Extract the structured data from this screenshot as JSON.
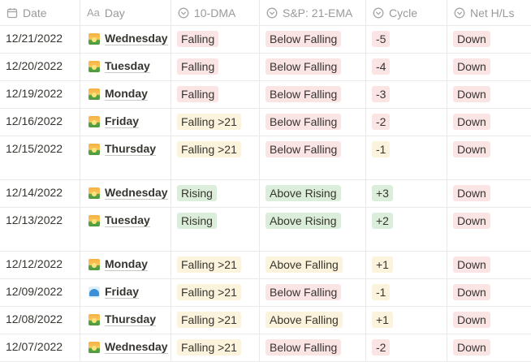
{
  "columns": {
    "date": {
      "label": "Date",
      "icon": "calendar-icon"
    },
    "day": {
      "label": "Day",
      "icon": "text-property-icon",
      "icon_text": "Aa"
    },
    "dma": {
      "label": "10-DMA",
      "icon": "select-property-icon"
    },
    "ema": {
      "label": "S&P: 21-EMA",
      "icon": "select-property-icon"
    },
    "cycle": {
      "label": "Cycle",
      "icon": "select-property-icon"
    },
    "hl": {
      "label": "Net H/Ls",
      "icon": "select-property-icon"
    }
  },
  "colors": {
    "red_tag": "#fbe4e4",
    "yellow_tag": "#fbf3db",
    "green_tag": "#dbeddb"
  },
  "rows": [
    {
      "date": "12/21/2022",
      "emoji": "sunrise-icon",
      "day": "Wednesday",
      "dma": "Falling",
      "dma_color": "red",
      "ema": "Below Falling",
      "ema_color": "red",
      "cycle": "-5",
      "cycle_color": "red",
      "hl": "Down",
      "hl_color": "red"
    },
    {
      "date": "12/20/2022",
      "emoji": "sunrise-icon",
      "day": "Tuesday",
      "dma": "Falling",
      "dma_color": "red",
      "ema": "Below Falling",
      "ema_color": "red",
      "cycle": "-4",
      "cycle_color": "red",
      "hl": "Down",
      "hl_color": "red"
    },
    {
      "date": "12/19/2022",
      "emoji": "sunrise-icon",
      "day": "Monday",
      "dma": "Falling",
      "dma_color": "red",
      "ema": "Below Falling",
      "ema_color": "red",
      "cycle": "-3",
      "cycle_color": "red",
      "hl": "Down",
      "hl_color": "red"
    },
    {
      "date": "12/16/2022",
      "emoji": "sunrise-icon",
      "day": "Friday",
      "dma": "Falling >21",
      "dma_color": "yellow",
      "ema": "Below Falling",
      "ema_color": "red",
      "cycle": "-2",
      "cycle_color": "red",
      "hl": "Down",
      "hl_color": "red"
    },
    {
      "date": "12/15/2022",
      "emoji": "sunrise-icon",
      "day": "Thursday",
      "dma": "Falling >21",
      "dma_color": "yellow",
      "ema": "Below Falling",
      "ema_color": "red",
      "cycle": "-1",
      "cycle_color": "yellow",
      "hl": "Down",
      "hl_color": "red"
    },
    {
      "date": "12/14/2022",
      "emoji": "sunrise-icon",
      "day": "Wednesday",
      "dma": "Rising",
      "dma_color": "green",
      "ema": "Above Rising",
      "ema_color": "green",
      "cycle": "+3",
      "cycle_color": "green",
      "hl": "Down",
      "hl_color": "red"
    },
    {
      "date": "12/13/2022",
      "emoji": "sunrise-icon",
      "day": "Tuesday",
      "dma": "Rising",
      "dma_color": "green",
      "ema": "Above Rising",
      "ema_color": "green",
      "cycle": "+2",
      "cycle_color": "green",
      "hl": "Down",
      "hl_color": "red"
    },
    {
      "date": "12/12/2022",
      "emoji": "sunrise-icon",
      "day": "Monday",
      "dma": "Falling >21",
      "dma_color": "yellow",
      "ema": "Above Falling",
      "ema_color": "yellow",
      "cycle": "+1",
      "cycle_color": "yellow",
      "hl": "Down",
      "hl_color": "red"
    },
    {
      "date": "12/09/2022",
      "emoji": "wave-icon",
      "day": "Friday",
      "dma": "Falling >21",
      "dma_color": "yellow",
      "ema": "Below Falling",
      "ema_color": "red",
      "cycle": "-1",
      "cycle_color": "yellow",
      "hl": "Down",
      "hl_color": "red"
    },
    {
      "date": "12/08/2022",
      "emoji": "sunrise-icon",
      "day": "Thursday",
      "dma": "Falling >21",
      "dma_color": "yellow",
      "ema": "Above Falling",
      "ema_color": "yellow",
      "cycle": "+1",
      "cycle_color": "yellow",
      "hl": "Down",
      "hl_color": "red"
    },
    {
      "date": "12/07/2022",
      "emoji": "sunrise-icon",
      "day": "Wednesday",
      "dma": "Falling >21",
      "dma_color": "yellow",
      "ema": "Below Falling",
      "ema_color": "red",
      "cycle": "-2",
      "cycle_color": "red",
      "hl": "Down",
      "hl_color": "red"
    }
  ]
}
